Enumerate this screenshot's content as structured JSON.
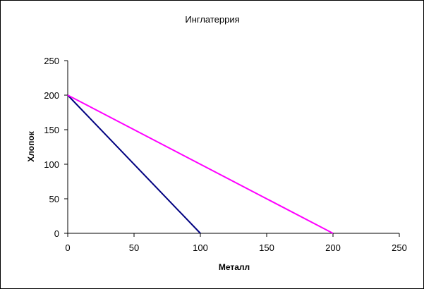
{
  "chart_data": {
    "type": "line",
    "title": "Инглатеррия",
    "xlabel": "Металл",
    "ylabel": "Хлопок",
    "xlim": [
      0,
      250
    ],
    "ylim": [
      0,
      250
    ],
    "x_ticks": [
      "0",
      "50",
      "100",
      "150",
      "200",
      "250"
    ],
    "y_ticks": [
      "0",
      "50",
      "100",
      "150",
      "200",
      "250"
    ],
    "x_tick_values": [
      0,
      50,
      100,
      150,
      200,
      250
    ],
    "y_tick_values": [
      0,
      50,
      100,
      150,
      200,
      250
    ],
    "grid": false,
    "legend": "none",
    "series": [
      {
        "color": "#000080",
        "x": [
          0,
          100
        ],
        "y": [
          200,
          0
        ]
      },
      {
        "color": "#ff00ff",
        "x": [
          0,
          200
        ],
        "y": [
          200,
          0
        ]
      }
    ]
  }
}
